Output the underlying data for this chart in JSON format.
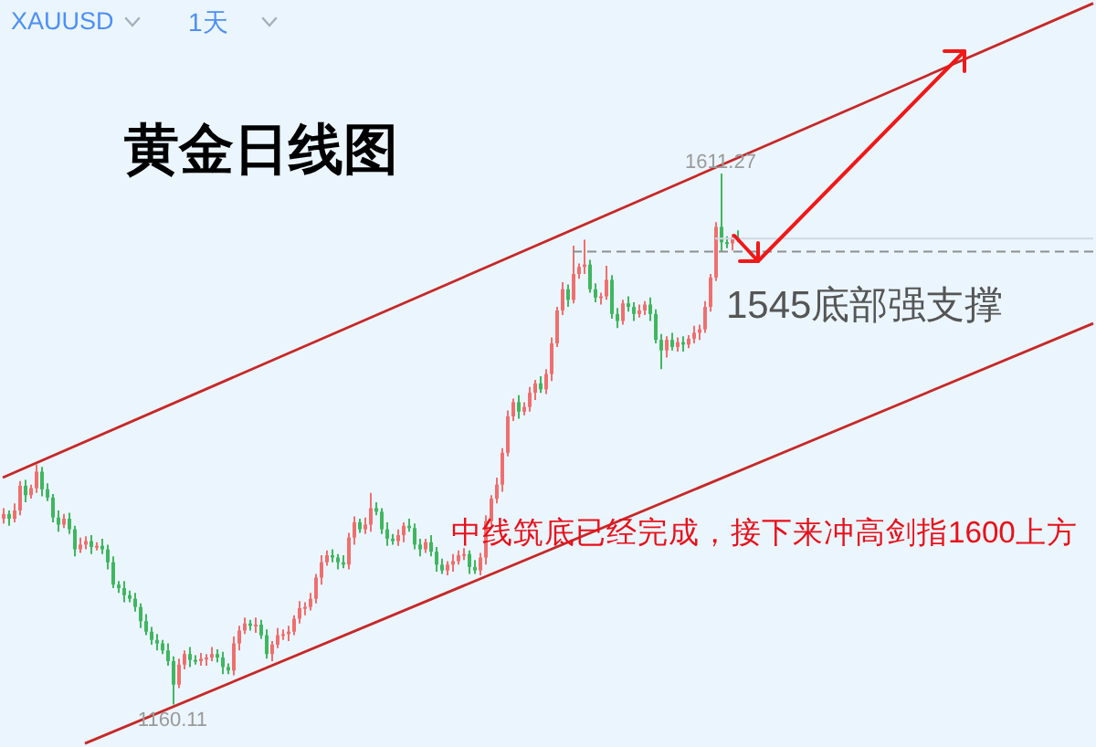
{
  "chart_data": {
    "type": "candlestick",
    "title": "黄金日线图",
    "annotations": [
      "XAUUSD",
      "1天",
      "中线筑底已经完成，接下来冲高剑指1600上方",
      {
        "text": "1611.27",
        "y": 1611.27
      },
      {
        "text": "1160.11",
        "y": 1160.11
      }
    ],
    "categories": [
      null,
      null,
      null,
      null,
      null,
      null,
      null,
      null,
      null,
      null,
      null,
      null,
      null,
      null,
      null,
      null,
      null,
      null,
      null,
      null,
      null,
      null,
      null,
      null,
      null,
      null,
      null,
      null,
      null,
      null,
      null,
      null,
      null,
      null,
      null,
      null,
      null,
      null,
      null,
      null,
      null,
      null,
      null,
      null,
      null,
      null,
      null,
      null,
      null,
      null,
      null,
      null,
      null,
      null,
      null,
      null,
      null,
      null,
      null,
      null,
      null,
      null,
      null,
      null,
      null,
      null,
      null,
      null,
      null,
      null,
      null,
      null,
      null,
      null,
      null,
      null,
      null,
      null,
      null,
      null,
      null,
      null,
      null,
      null,
      null,
      null,
      null,
      null,
      null,
      null,
      null,
      null,
      null,
      null,
      null,
      null,
      null,
      null,
      null,
      null,
      null,
      null,
      null,
      null,
      null,
      null,
      null,
      null,
      null,
      null,
      null,
      null,
      null,
      null,
      null,
      null,
      null,
      null,
      null,
      null,
      null,
      null,
      null,
      null,
      null,
      null,
      null,
      null,
      null,
      null,
      null,
      null,
      null,
      null,
      null,
      null,
      null,
      null,
      null,
      null,
      null,
      null,
      null,
      null,
      null,
      null,
      null,
      null,
      null,
      null,
      null,
      null,
      null,
      null,
      null,
      null,
      null,
      null,
      null,
      null,
      null,
      null,
      null,
      null,
      null,
      null,
      null,
      null,
      null,
      null,
      null,
      null,
      null,
      null,
      null,
      null,
      null,
      null,
      null,
      null,
      null,
      null,
      null,
      null,
      null,
      null,
      null,
      null,
      null,
      null,
      null,
      null,
      null,
      null,
      null,
      null,
      null,
      null,
      null,
      null
    ],
    "ohlc": [
      [
        1318,
        1327,
        1314,
        1322
      ],
      [
        1322,
        1325,
        1312,
        1318
      ],
      [
        1318,
        1331,
        1315,
        1325
      ],
      [
        1325,
        1350,
        1321,
        1346
      ],
      [
        1346,
        1351,
        1332,
        1338
      ],
      [
        1338,
        1347,
        1335,
        1344
      ],
      [
        1344,
        1364,
        1340,
        1358
      ],
      [
        1358,
        1362,
        1337,
        1343
      ],
      [
        1343,
        1348,
        1333,
        1336
      ],
      [
        1336,
        1339,
        1315,
        1319
      ],
      [
        1319,
        1325,
        1307,
        1313
      ],
      [
        1313,
        1322,
        1310,
        1318
      ],
      [
        1318,
        1323,
        1305,
        1309
      ],
      [
        1309,
        1312,
        1286,
        1292
      ],
      [
        1292,
        1302,
        1289,
        1296
      ],
      [
        1296,
        1303,
        1292,
        1299
      ],
      [
        1299,
        1304,
        1288,
        1294
      ],
      [
        1294,
        1298,
        1291,
        1295
      ],
      [
        1295,
        1301,
        1288,
        1292
      ],
      [
        1292,
        1296,
        1275,
        1281
      ],
      [
        1281,
        1286,
        1259,
        1262
      ],
      [
        1262,
        1265,
        1255,
        1259
      ],
      [
        1259,
        1265,
        1247,
        1253
      ],
      [
        1253,
        1257,
        1247,
        1250
      ],
      [
        1250,
        1255,
        1239,
        1243
      ],
      [
        1243,
        1246,
        1225,
        1231
      ],
      [
        1231,
        1237,
        1219,
        1222
      ],
      [
        1222,
        1226,
        1211,
        1215
      ],
      [
        1215,
        1220,
        1206,
        1212
      ],
      [
        1212,
        1215,
        1203,
        1206
      ],
      [
        1206,
        1212,
        1193,
        1197
      ],
      [
        1197,
        1201,
        1160.11,
        1177
      ],
      [
        1177,
        1199,
        1174,
        1194
      ],
      [
        1194,
        1206,
        1190,
        1203
      ],
      [
        1203,
        1209,
        1192,
        1198
      ],
      [
        1198,
        1202,
        1194,
        1197
      ],
      [
        1197,
        1204,
        1193,
        1199
      ],
      [
        1199,
        1203,
        1193,
        1200
      ],
      [
        1200,
        1209,
        1197,
        1203
      ],
      [
        1203,
        1207,
        1196,
        1200
      ],
      [
        1200,
        1205,
        1186,
        1192
      ],
      [
        1192,
        1195,
        1186,
        1189
      ],
      [
        1189,
        1218,
        1185,
        1212
      ],
      [
        1212,
        1227,
        1206,
        1223
      ],
      [
        1223,
        1234,
        1220,
        1229
      ],
      [
        1229,
        1232,
        1223,
        1227
      ],
      [
        1227,
        1234,
        1221,
        1228
      ],
      [
        1228,
        1232,
        1216,
        1219
      ],
      [
        1219,
        1224,
        1199,
        1203
      ],
      [
        1203,
        1214,
        1197,
        1211
      ],
      [
        1211,
        1225,
        1208,
        1219
      ],
      [
        1219,
        1224,
        1215,
        1220
      ],
      [
        1220,
        1227,
        1214,
        1222
      ],
      [
        1222,
        1236,
        1219,
        1233
      ],
      [
        1233,
        1248,
        1229,
        1242
      ],
      [
        1242,
        1247,
        1236,
        1243
      ],
      [
        1243,
        1255,
        1240,
        1250
      ],
      [
        1250,
        1271,
        1246,
        1268
      ],
      [
        1268,
        1287,
        1262,
        1281
      ],
      [
        1281,
        1291,
        1278,
        1287
      ],
      [
        1287,
        1292,
        1281,
        1285
      ],
      [
        1285,
        1288,
        1275,
        1281
      ],
      [
        1281,
        1287,
        1276,
        1279
      ],
      [
        1279,
        1306,
        1275,
        1302
      ],
      [
        1302,
        1320,
        1296,
        1315
      ],
      [
        1315,
        1318,
        1306,
        1309
      ],
      [
        1309,
        1319,
        1305,
        1313
      ],
      [
        1313,
        1340,
        1307,
        1327
      ],
      [
        1327,
        1332,
        1321,
        1324
      ],
      [
        1324,
        1327,
        1305,
        1309
      ],
      [
        1309,
        1315,
        1295,
        1301
      ],
      [
        1301,
        1305,
        1296,
        1299
      ],
      [
        1299,
        1309,
        1295,
        1304
      ],
      [
        1304,
        1315,
        1298,
        1312
      ],
      [
        1312,
        1318,
        1307,
        1310
      ],
      [
        1310,
        1314,
        1292,
        1296
      ],
      [
        1296,
        1301,
        1286,
        1292
      ],
      [
        1292,
        1301,
        1289,
        1298
      ],
      [
        1298,
        1304,
        1286,
        1290
      ],
      [
        1290,
        1294,
        1273,
        1279
      ],
      [
        1279,
        1284,
        1271,
        1274
      ],
      [
        1274,
        1282,
        1270,
        1279
      ],
      [
        1279,
        1288,
        1273,
        1282
      ],
      [
        1282,
        1291,
        1279,
        1287
      ],
      [
        1287,
        1293,
        1283,
        1288
      ],
      [
        1288,
        1291,
        1271,
        1277
      ],
      [
        1277,
        1283,
        1271,
        1274
      ],
      [
        1274,
        1289,
        1270,
        1285
      ],
      [
        1285,
        1321,
        1279,
        1316
      ],
      [
        1316,
        1338,
        1313,
        1335
      ],
      [
        1335,
        1353,
        1331,
        1347
      ],
      [
        1347,
        1378,
        1341,
        1374
      ],
      [
        1374,
        1410,
        1371,
        1405
      ],
      [
        1405,
        1420,
        1401,
        1417
      ],
      [
        1417,
        1423,
        1403,
        1409
      ],
      [
        1409,
        1417,
        1406,
        1413
      ],
      [
        1413,
        1430,
        1409,
        1425
      ],
      [
        1425,
        1436,
        1419,
        1433
      ],
      [
        1433,
        1439,
        1425,
        1428
      ],
      [
        1428,
        1445,
        1424,
        1441
      ],
      [
        1441,
        1472,
        1435,
        1467
      ],
      [
        1467,
        1498,
        1464,
        1495
      ],
      [
        1495,
        1519,
        1491,
        1513
      ],
      [
        1513,
        1517,
        1498,
        1504
      ],
      [
        1504,
        1550,
        1501,
        1526
      ],
      [
        1526,
        1535,
        1522,
        1532
      ],
      [
        1532,
        1555,
        1526,
        1534
      ],
      [
        1534,
        1538,
        1510,
        1513
      ],
      [
        1513,
        1518,
        1502,
        1506
      ],
      [
        1506,
        1510,
        1500,
        1507
      ],
      [
        1507,
        1533,
        1504,
        1521
      ],
      [
        1521,
        1525,
        1488,
        1492
      ],
      [
        1492,
        1497,
        1480,
        1486
      ],
      [
        1486,
        1504,
        1483,
        1501
      ],
      [
        1501,
        1507,
        1494,
        1498
      ],
      [
        1498,
        1502,
        1486,
        1492
      ],
      [
        1492,
        1500,
        1489,
        1495
      ],
      [
        1495,
        1503,
        1491,
        1500
      ],
      [
        1500,
        1506,
        1486,
        1492
      ],
      [
        1492,
        1496,
        1467,
        1470
      ],
      [
        1470,
        1475,
        1445,
        1461
      ],
      [
        1461,
        1473,
        1455,
        1470
      ],
      [
        1470,
        1476,
        1461,
        1464
      ],
      [
        1464,
        1472,
        1460,
        1468
      ],
      [
        1468,
        1473,
        1460,
        1466
      ],
      [
        1466,
        1474,
        1463,
        1471
      ],
      [
        1471,
        1482,
        1467,
        1476
      ],
      [
        1476,
        1483,
        1470,
        1479
      ],
      [
        1479,
        1503,
        1476,
        1498
      ],
      [
        1498,
        1526,
        1494,
        1523
      ],
      [
        1523,
        1570,
        1520,
        1566
      ],
      [
        1566,
        1611.27,
        1545,
        1553
      ],
      [
        1553,
        1558,
        1548,
        1552
      ],
      [
        1552,
        1560,
        1546,
        1557
      ],
      [
        1557,
        1563,
        1553,
        1556
      ],
      null,
      null,
      null,
      null,
      null,
      null,
      null,
      null,
      null,
      null,
      null,
      null,
      null,
      null,
      null,
      null,
      null,
      null,
      null,
      null,
      null,
      null,
      null,
      null,
      null,
      null,
      null,
      null,
      null,
      null,
      null,
      null,
      null,
      null,
      null,
      null,
      null,
      null,
      null,
      null,
      null,
      null,
      null,
      null,
      null,
      null,
      null,
      null,
      null,
      null,
      null,
      null,
      null,
      null,
      null,
      null,
      null,
      null,
      null,
      null,
      null,
      null,
      null,
      null,
      null
    ],
    "colors": [
      "#ef6f6f",
      "#3fb760",
      "#ef6f6f",
      "#ef6f6f",
      "#3fb760",
      "#ef6f6f",
      "#ef6f6f",
      "#3fb760",
      "#3fb760",
      "#3fb760",
      "#3fb760",
      "#ef6f6f",
      "#3fb760",
      "#3fb760",
      "#ef6f6f",
      "#ef6f6f",
      "#3fb760",
      "#ef6f6f",
      "#3fb760",
      "#3fb760",
      "#3fb760",
      "#3fb760",
      "#3fb760",
      "#3fb760",
      "#3fb760",
      "#3fb760",
      "#3fb760",
      "#3fb760",
      "#3fb760",
      "#3fb760",
      "#3fb760",
      "#3fb760",
      "#ef6f6f",
      "#ef6f6f",
      "#3fb760",
      "#3fb760",
      "#ef6f6f",
      "#ef6f6f",
      "#ef6f6f",
      "#3fb760",
      "#3fb760",
      "#3fb760",
      "#ef6f6f",
      "#ef6f6f",
      "#ef6f6f",
      "#3fb760",
      "#ef6f6f",
      "#3fb760",
      "#3fb760",
      "#ef6f6f",
      "#ef6f6f",
      "#ef6f6f",
      "#ef6f6f",
      "#ef6f6f",
      "#ef6f6f",
      "#ef6f6f",
      "#ef6f6f",
      "#ef6f6f",
      "#ef6f6f",
      "#ef6f6f",
      "#3fb760",
      "#3fb760",
      "#3fb760",
      "#ef6f6f",
      "#ef6f6f",
      "#3fb760",
      "#ef6f6f",
      "#ef6f6f",
      "#3fb760",
      "#3fb760",
      "#3fb760",
      "#3fb760",
      "#ef6f6f",
      "#ef6f6f",
      "#3fb760",
      "#3fb760",
      "#3fb760",
      "#ef6f6f",
      "#3fb760",
      "#3fb760",
      "#3fb760",
      "#ef6f6f",
      "#ef6f6f",
      "#ef6f6f",
      "#ef6f6f",
      "#3fb760",
      "#3fb760",
      "#ef6f6f",
      "#ef6f6f",
      "#ef6f6f",
      "#ef6f6f",
      "#ef6f6f",
      "#ef6f6f",
      "#ef6f6f",
      "#3fb760",
      "#ef6f6f",
      "#ef6f6f",
      "#ef6f6f",
      "#3fb760",
      "#ef6f6f",
      "#ef6f6f",
      "#ef6f6f",
      "#ef6f6f",
      "#3fb760",
      "#ef6f6f",
      "#ef6f6f",
      "#ef6f6f",
      "#3fb760",
      "#3fb760",
      "#ef6f6f",
      "#ef6f6f",
      "#3fb760",
      "#3fb760",
      "#ef6f6f",
      "#3fb760",
      "#3fb760",
      "#ef6f6f",
      "#ef6f6f",
      "#3fb760",
      "#3fb760",
      "#3fb760",
      "#ef6f6f",
      "#3fb760",
      "#ef6f6f",
      "#3fb760",
      "#ef6f6f",
      "#ef6f6f",
      "#ef6f6f",
      "#ef6f6f",
      "#ef6f6f",
      "#ef6f6f",
      "#3fb760",
      "#3fb760",
      "#ef6f6f",
      "#3fb760",
      null,
      null,
      null,
      null,
      null,
      null,
      null,
      null,
      null,
      null,
      null,
      null,
      null,
      null,
      null,
      null,
      null,
      null,
      null,
      null,
      null,
      null,
      null,
      null,
      null,
      null,
      null,
      null,
      null,
      null,
      null,
      null,
      null,
      null,
      null,
      null,
      null,
      null,
      null,
      null,
      null,
      null,
      null,
      null,
      null,
      null,
      null,
      null,
      null,
      null,
      null,
      null,
      null,
      null,
      null,
      null,
      null,
      null,
      null,
      null,
      null,
      null,
      null,
      null,
      null
    ],
    "series": [
      {
        "type": "line",
        "color": "#c62828",
        "values": [
          1353,
          null,
          null,
          null,
          null,
          null,
          null,
          null,
          null,
          null,
          null,
          null,
          null,
          null,
          null,
          null,
          null,
          null,
          null,
          null,
          null,
          null,
          null,
          null,
          null,
          null,
          null,
          null,
          null,
          null,
          null,
          null,
          null,
          null,
          null,
          null,
          null,
          null,
          null,
          null,
          null,
          null,
          null,
          null,
          null,
          null,
          null,
          null,
          null,
          null,
          null,
          null,
          null,
          null,
          null,
          null,
          null,
          null,
          null,
          null,
          null,
          null,
          null,
          null,
          null,
          null,
          null,
          null,
          null,
          null,
          null,
          null,
          null,
          null,
          null,
          null,
          null,
          null,
          null,
          null,
          null,
          null,
          null,
          null,
          null,
          null,
          null,
          null,
          null,
          null,
          null,
          null,
          null,
          null,
          null,
          null,
          null,
          null,
          null,
          null,
          null,
          null,
          null,
          null,
          null,
          null,
          null,
          null,
          null,
          null,
          null,
          null,
          null,
          null,
          null,
          null,
          null,
          null,
          null,
          null,
          null,
          null,
          null,
          null,
          null,
          null,
          null,
          null,
          null,
          null,
          null,
          null,
          null,
          null,
          null,
          null,
          null,
          null,
          null,
          null,
          null,
          null,
          null,
          null,
          null,
          null,
          null,
          null,
          null,
          null,
          null,
          null,
          null,
          null,
          null,
          null,
          null,
          null,
          null,
          null,
          null,
          null,
          null,
          null,
          null,
          null,
          null,
          null,
          null,
          null,
          null,
          null,
          null,
          null,
          null,
          null,
          null,
          null,
          null,
          null,
          null,
          null,
          null,
          null,
          null,
          null,
          null,
          null,
          null,
          null,
          null,
          null,
          null,
          null,
          null,
          null,
          null,
          null,
          null,
          1756
        ]
      },
      {
        "type": "line",
        "color": "#c62828",
        "values": [
          null,
          null,
          null,
          null,
          null,
          null,
          null,
          null,
          null,
          null,
          null,
          null,
          null,
          null,
          null,
          1127,
          null,
          null,
          null,
          null,
          null,
          null,
          null,
          null,
          null,
          null,
          null,
          null,
          null,
          null,
          null,
          null,
          null,
          null,
          null,
          null,
          null,
          null,
          null,
          null,
          null,
          null,
          null,
          null,
          null,
          null,
          null,
          null,
          null,
          null,
          null,
          null,
          null,
          null,
          null,
          null,
          null,
          null,
          null,
          null,
          null,
          null,
          null,
          null,
          null,
          null,
          null,
          null,
          null,
          null,
          null,
          null,
          null,
          null,
          null,
          null,
          null,
          null,
          null,
          null,
          null,
          null,
          null,
          null,
          null,
          null,
          null,
          null,
          null,
          null,
          null,
          null,
          null,
          null,
          null,
          null,
          null,
          null,
          null,
          null,
          null,
          null,
          null,
          null,
          null,
          null,
          null,
          null,
          null,
          null,
          null,
          null,
          null,
          null,
          null,
          null,
          null,
          null,
          null,
          null,
          null,
          null,
          null,
          null,
          null,
          null,
          null,
          null,
          null,
          null,
          null,
          null,
          null,
          null,
          null,
          null,
          null,
          null,
          null,
          null,
          null,
          null,
          null,
          null,
          null,
          null,
          null,
          null,
          null,
          null,
          null,
          null,
          null,
          null,
          null,
          null,
          null,
          null,
          null,
          null,
          null,
          null,
          null,
          null,
          null,
          null,
          null,
          null,
          null,
          null,
          null,
          null,
          null,
          null,
          null,
          null,
          null,
          null,
          null,
          null,
          null,
          null,
          null,
          null,
          null,
          null,
          null,
          null,
          null,
          null,
          null,
          null,
          null,
          null,
          null,
          null,
          null,
          null,
          null,
          1484
        ]
      }
    ],
    "ref_lines": [
      {
        "axis": "y",
        "value": 1545,
        "label": "1545底部强支撑",
        "color": "#8f8f8f",
        "line_style": "dashed"
      },
      {
        "axis": "y",
        "value": 1556,
        "color": "#d0d9e2"
      }
    ],
    "tick_labels": false
  }
}
